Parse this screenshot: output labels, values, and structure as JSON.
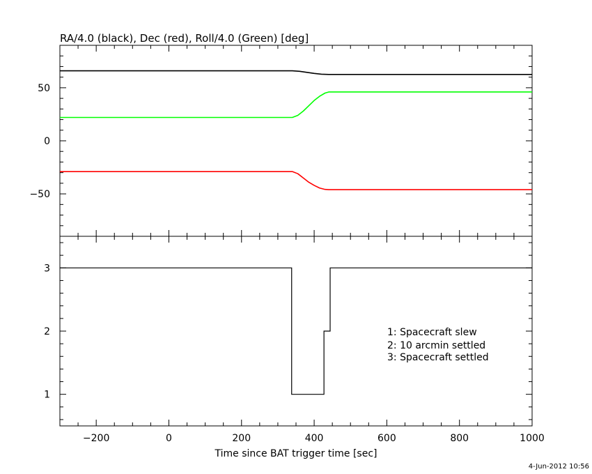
{
  "chart_data": [
    {
      "type": "line",
      "title": "RA/4.0 (black), Dec (red), Roll/4.0 (Green) [deg]",
      "xlim": [
        -300,
        1000
      ],
      "ylim": [
        -90,
        90
      ],
      "yticks": [
        -50,
        0,
        50
      ],
      "series": [
        {
          "color": "#000000",
          "x": [
            -300,
            340,
            360,
            380,
            400,
            420,
            440,
            1000
          ],
          "y": [
            66,
            66,
            65.5,
            64.5,
            63.5,
            62.8,
            62.5,
            62.5
          ]
        },
        {
          "color": "#00ff00",
          "x": [
            -300,
            340,
            355,
            370,
            385,
            400,
            415,
            430,
            440,
            1000
          ],
          "y": [
            22,
            22,
            24,
            28,
            33,
            38,
            42,
            45,
            46,
            46
          ]
        },
        {
          "color": "#ff0000",
          "x": [
            -300,
            340,
            355,
            370,
            385,
            400,
            415,
            430,
            440,
            1000
          ],
          "y": [
            -29,
            -29,
            -31,
            -35,
            -39,
            -42,
            -44.5,
            -45.8,
            -46,
            -46
          ]
        }
      ]
    },
    {
      "type": "line",
      "step": true,
      "xlim": [
        -300,
        1000
      ],
      "ylim": [
        0.5,
        3.5
      ],
      "yticks": [
        1,
        2,
        3
      ],
      "xticks": [
        -200,
        0,
        200,
        400,
        600,
        800,
        1000
      ],
      "xlabel": "Time since BAT trigger time [sec]",
      "series": [
        {
          "color": "#000000",
          "x": [
            -300,
            338,
            338,
            427,
            427,
            444,
            444,
            1000
          ],
          "y": [
            3,
            3,
            1,
            1,
            2,
            2,
            3,
            3
          ]
        }
      ],
      "annotations": [
        "1: Spacecraft slew",
        "2: 10 arcmin settled",
        "3: Spacecraft settled"
      ]
    }
  ],
  "timestamp": "4-Jun-2012 10:56"
}
